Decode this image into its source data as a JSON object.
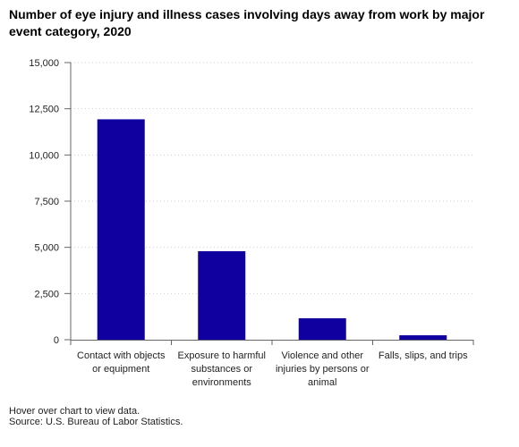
{
  "title": "Number of eye injury and illness cases involving days away from work by major event category, 2020",
  "footer": {
    "hint": "Hover over chart to view data.",
    "source": "Source: U.S. Bureau of Labor Statistics."
  },
  "colors": {
    "bar": "#1000a0",
    "grid": "#cccccc",
    "axis": "#666666"
  },
  "chart_data": {
    "type": "bar",
    "title": "Number of eye injury and illness cases involving days away from work by major event category, 2020",
    "xlabel": "",
    "ylabel": "",
    "ylim": [
      0,
      15000
    ],
    "yticks": [
      0,
      2500,
      5000,
      7500,
      10000,
      12500,
      15000
    ],
    "ytick_labels": [
      "0",
      "2,500",
      "5,000",
      "7,500",
      "10,000",
      "12,500",
      "15,000"
    ],
    "grid": true,
    "categories": [
      [
        "Contact with objects",
        "or equipment"
      ],
      [
        "Exposure to harmful",
        "substances or",
        "environments"
      ],
      [
        "Violence and other",
        "injuries by persons or",
        "animal"
      ],
      [
        "Falls, slips, and trips"
      ]
    ],
    "values": [
      11930,
      4790,
      1160,
      240
    ]
  }
}
